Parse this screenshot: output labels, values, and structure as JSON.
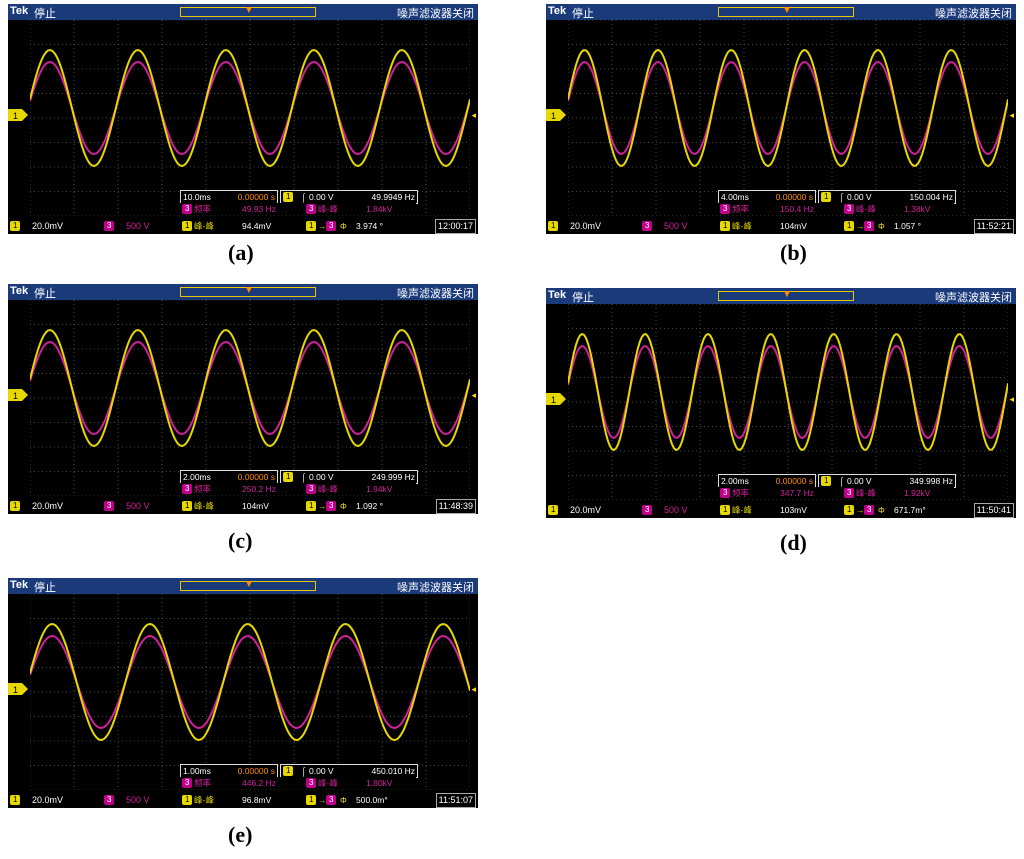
{
  "scope": {
    "brand": "Tek",
    "status": "停止",
    "noise_filter": "噪声滤波器关闭",
    "ch1_label": "1",
    "ch3_label": "3",
    "ch1_scale": "20.0mV",
    "ch3_scale": "500 V",
    "trigger_level": "0.00 V",
    "freq_label": "频率",
    "pkpk_label": "峰-峰",
    "phase_label": "Φ",
    "colors": {
      "ch1": "#e6d800",
      "ch3": "#d0209a",
      "grid": "#4a4a4a",
      "frame": "#1a3a7a"
    }
  },
  "panels": [
    {
      "caption": "(a)",
      "timebase": "10.0ms",
      "delay": "0.00000 s",
      "trig_freq": "49.9949 Hz",
      "ch3_freq": "49.93 Hz",
      "ch3_pkpk": "1.84kV",
      "ch1_pkpk": "94.4mV",
      "phase": "3.974 °",
      "time": "12:00:17",
      "cycles": 5
    },
    {
      "caption": "(b)",
      "timebase": "4.00ms",
      "delay": "0.00000 s",
      "trig_freq": "150.004 Hz",
      "ch3_freq": "150.4 Hz",
      "ch3_pkpk": "1.38kV",
      "ch1_pkpk": "104mV",
      "phase": "1.057 °",
      "time": "11:52:21",
      "cycles": 6
    },
    {
      "caption": "(c)",
      "timebase": "2.00ms",
      "delay": "0.00000 s",
      "trig_freq": "249.999 Hz",
      "ch3_freq": "250.2 Hz",
      "ch3_pkpk": "1.94kV",
      "ch1_pkpk": "104mV",
      "phase": "1.092 °",
      "time": "11:48:39",
      "cycles": 5
    },
    {
      "caption": "(d)",
      "timebase": "2.00ms",
      "delay": "0.00000 s",
      "trig_freq": "349.998 Hz",
      "ch3_freq": "347.7 Hz",
      "ch3_pkpk": "1.92kV",
      "ch1_pkpk": "103mV",
      "phase": "671.7m°",
      "time": "11:50:41",
      "cycles": 7
    },
    {
      "caption": "(e)",
      "timebase": "1.00ms",
      "delay": "0.00000 s",
      "trig_freq": "450.010 Hz",
      "ch3_freq": "446.2 Hz",
      "ch3_pkpk": "1.80kV",
      "ch1_pkpk": "96.8mV",
      "phase": "500.0m°",
      "time": "11:51:07",
      "cycles": 4.5
    }
  ]
}
